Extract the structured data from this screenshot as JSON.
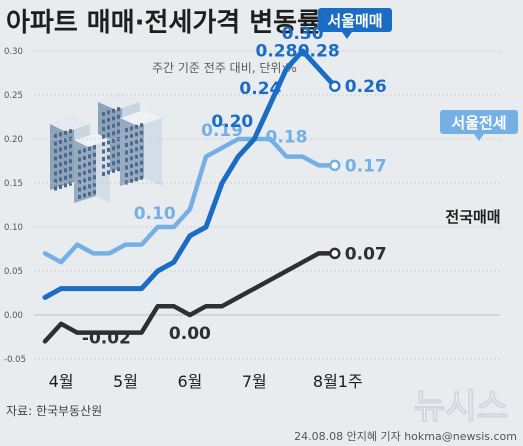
{
  "header": {
    "title": "아파트 매매·전세가격 변동률",
    "subtitle": "주간 기준 전주 대비, 단위:%"
  },
  "footer": {
    "source": "자료: 한국부동산원",
    "credit": "24.08.08 안지혜 기자 hokma@newsis.com",
    "watermark": "뉴시스"
  },
  "colors": {
    "seoul_sale": "#1a6cc4",
    "seoul_jeonse": "#74b0e4",
    "national_sale": "#2f2f2f",
    "background": "#e9ecef",
    "grid": "#c4c8cc"
  },
  "chart_data": {
    "type": "line",
    "ylim": [
      -0.05,
      0.3
    ],
    "yticks": [
      -0.05,
      0.0,
      0.05,
      0.1,
      0.15,
      0.2,
      0.25,
      0.3
    ],
    "ytick_labels": [
      "-0.05",
      "0.00",
      "0.05",
      "0.10",
      "0.15",
      "0.20",
      "0.25",
      "0.30"
    ],
    "x_tick_labels": [
      {
        "label": "4월",
        "index": 1
      },
      {
        "label": "5월",
        "index": 5
      },
      {
        "label": "6월",
        "index": 9
      },
      {
        "label": "7월",
        "index": 13
      },
      {
        "label": "8월1주",
        "index": 18
      }
    ],
    "grid": true,
    "series": [
      {
        "name": "서울매매",
        "color": "#1a6cc4",
        "values": [
          0.02,
          0.03,
          0.03,
          0.03,
          0.03,
          0.03,
          0.03,
          0.05,
          0.06,
          0.09,
          0.1,
          0.15,
          0.18,
          0.2,
          0.24,
          0.28,
          0.3,
          0.28,
          0.26
        ],
        "point_labels": [
          {
            "index": 14,
            "text": "0.24"
          },
          {
            "index": 15,
            "text": "0.28"
          },
          {
            "index": 16,
            "text": "0.30"
          },
          {
            "index": 17,
            "text": "0.28"
          },
          {
            "index": 18,
            "text": "0.26"
          }
        ]
      },
      {
        "name": "서울전세",
        "color": "#74b0e4",
        "values": [
          0.07,
          0.06,
          0.08,
          0.07,
          0.07,
          0.08,
          0.08,
          0.1,
          0.1,
          0.12,
          0.18,
          0.19,
          0.2,
          0.2,
          0.2,
          0.18,
          0.18,
          0.17,
          0.17
        ],
        "point_labels": [
          {
            "index": 7,
            "text": "0.10"
          },
          {
            "index": 11,
            "text": "0.19"
          },
          {
            "index": 15,
            "text": "0.18"
          },
          {
            "index": 18,
            "text": "0.17"
          }
        ]
      },
      {
        "name": "전국매매",
        "color": "#2f2f2f",
        "values": [
          -0.03,
          -0.01,
          -0.02,
          -0.02,
          -0.02,
          -0.02,
          -0.02,
          0.01,
          0.01,
          0.0,
          0.01,
          0.01,
          0.02,
          0.03,
          0.04,
          0.05,
          0.06,
          0.07,
          0.07
        ],
        "point_labels": [
          {
            "index": 4,
            "text": "-0.02"
          },
          {
            "index": 9,
            "text": "0.00"
          },
          {
            "index": 18,
            "text": "0.07"
          }
        ]
      }
    ],
    "extra_labels": [
      {
        "series": 0,
        "index": 13,
        "text": "0.20"
      }
    ]
  }
}
